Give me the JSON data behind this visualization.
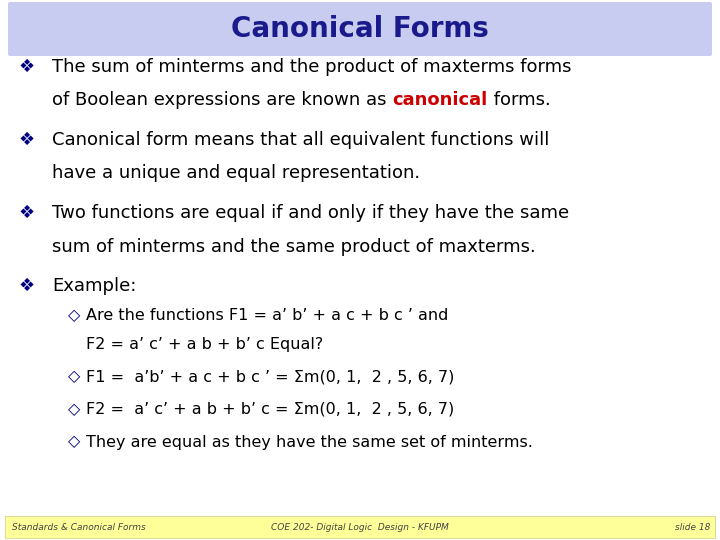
{
  "title": "Canonical Forms",
  "title_font": "Comic Sans MS",
  "title_color": "#1a1a8c",
  "title_bg_color": "#c8ccf0",
  "bg_color": "#ffffff",
  "footer_bg_color": "#ffff99",
  "footer_left": "Standards & Canonical Forms",
  "footer_center": "COE 202- Digital Logic  Design - KFUPM",
  "footer_right": "slide 18",
  "body_color": "#000000",
  "canonical_color": "#cc0000",
  "bullet_char": "❖",
  "sub_bullet_char": "◇",
  "bullet_color": "#000080",
  "sub_bullet_color": "#000080",
  "bullet1_line1": "The sum of minterms and the product of maxterms forms",
  "bullet1_line2_pre": "of Boolean expressions are known as ",
  "bullet1_canonical": "canonical",
  "bullet1_line2_post": " forms.",
  "bullet2_line1": "Canonical form means that all equivalent functions will",
  "bullet2_line2": "have a unique and equal representation.",
  "bullet3_line1": "Two functions are equal if and only if they have the same",
  "bullet3_line2": "sum of minterms and the same product of maxterms.",
  "bullet4": "Example:",
  "sub1_line1": "Are the functions F1 = a’ b’ + a c + b c ’ and",
  "sub1_line2": "F2 = a’ c’ + a b + b’ c Equal?",
  "sub2": "F1 =  a’b’ + a c + b c ’ = Σm(0, 1,  2 , 5, 6, 7)",
  "sub3": "F2 =  a’ c’ + a b + b’ c = Σm(0, 1,  2 , 5, 6, 7)",
  "sub4": "They are equal as they have the same set of minterms.",
  "fs_title": 20,
  "fs_main": 13,
  "fs_sub": 11.5,
  "fs_footer": 6.5
}
